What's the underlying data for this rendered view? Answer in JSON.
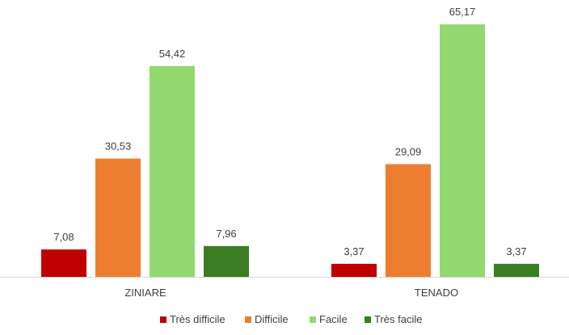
{
  "chart_data": {
    "type": "bar",
    "categories": [
      "ZINIARE",
      "TENADO"
    ],
    "series": [
      {
        "name": "Très difficile",
        "color": "#C00000",
        "values": [
          7.08,
          3.37
        ],
        "labels": [
          "7,08",
          "3,37"
        ]
      },
      {
        "name": "Difficile",
        "color": "#ED7D31",
        "values": [
          30.53,
          29.09
        ],
        "labels": [
          "30,53",
          "29,09"
        ]
      },
      {
        "name": "Facile",
        "color": "#92D96F",
        "values": [
          54.42,
          65.17
        ],
        "labels": [
          "54,42",
          "65,17"
        ]
      },
      {
        "name": "Très facile",
        "color": "#3A7D22",
        "values": [
          7.96,
          3.37
        ],
        "labels": [
          "7,96",
          "3,37"
        ]
      }
    ],
    "title": "",
    "xlabel": "",
    "ylabel": "",
    "ylim": [
      0,
      70
    ],
    "grid": false,
    "legend_position": "bottom",
    "data_labels": true
  }
}
